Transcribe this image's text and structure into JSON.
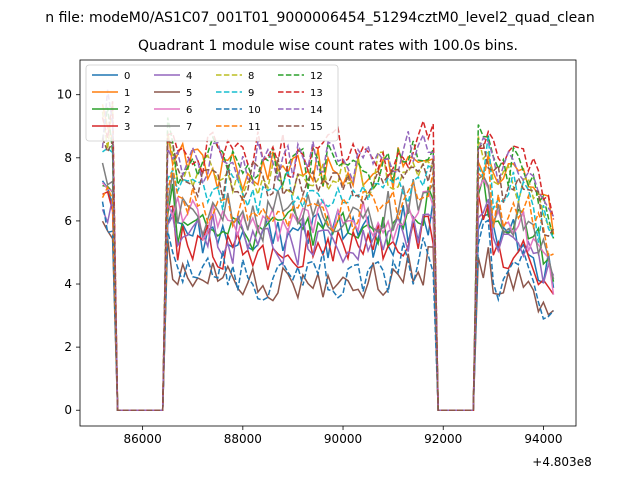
{
  "figure": {
    "suptitle": "n file: modeM0/AS1C07_001T01_9000006454_51294cztM0_level2_quad_clean"
  },
  "chart_data": {
    "type": "line",
    "title": "Quadrant 1 module wise count rates with 100.0s bins.",
    "xlabel": "",
    "ylabel": "",
    "x_offset_label": "+4.803e8",
    "xlim": [
      84750,
      94650
    ],
    "ylim": [
      -0.5,
      11.1
    ],
    "xticks": [
      86000,
      88000,
      90000,
      92000,
      94000
    ],
    "xtick_labels": [
      "86000",
      "88000",
      "90000",
      "92000",
      "94000"
    ],
    "yticks": [
      0,
      2,
      4,
      6,
      8,
      10
    ],
    "ytick_labels": [
      "0",
      "2",
      "4",
      "6",
      "8",
      "10"
    ],
    "grid": false,
    "legend": {
      "location": "upper-left",
      "columns": 4
    },
    "gaps": [
      [
        85500,
        86400
      ],
      [
        91900,
        92600
      ]
    ],
    "x": {
      "start": 85200,
      "end": 94200,
      "step": 100
    },
    "series": [
      {
        "name": "0",
        "color": "#1f77b4",
        "style": "solid",
        "level": 5.6
      },
      {
        "name": "1",
        "color": "#ff7f0e",
        "style": "solid",
        "level": 7.6
      },
      {
        "name": "2",
        "color": "#2ca02c",
        "style": "solid",
        "level": 5.8
      },
      {
        "name": "3",
        "color": "#d62728",
        "style": "solid",
        "level": 5.1
      },
      {
        "name": "4",
        "color": "#9467bd",
        "style": "solid",
        "level": 5.4
      },
      {
        "name": "5",
        "color": "#8c564b",
        "style": "solid",
        "level": 4.0
      },
      {
        "name": "6",
        "color": "#e377c2",
        "style": "solid",
        "level": 6.0
      },
      {
        "name": "7",
        "color": "#7f7f7f",
        "style": "solid",
        "level": 6.2
      },
      {
        "name": "8",
        "color": "#bcbd22",
        "style": "dashed",
        "level": 7.4
      },
      {
        "name": "9",
        "color": "#17becf",
        "style": "dashed",
        "level": 6.9
      },
      {
        "name": "10",
        "color": "#1f77b4",
        "style": "dashed",
        "level": 4.3
      },
      {
        "name": "11",
        "color": "#ff7f0e",
        "style": "dashed",
        "level": 6.4
      },
      {
        "name": "12",
        "color": "#2ca02c",
        "style": "dashed",
        "level": 7.8
      },
      {
        "name": "13",
        "color": "#d62728",
        "style": "dashed",
        "level": 8.1
      },
      {
        "name": "14",
        "color": "#9467bd",
        "style": "dashed",
        "level": 7.9
      },
      {
        "name": "15",
        "color": "#8c564b",
        "style": "dashed",
        "level": 7.2
      }
    ]
  }
}
